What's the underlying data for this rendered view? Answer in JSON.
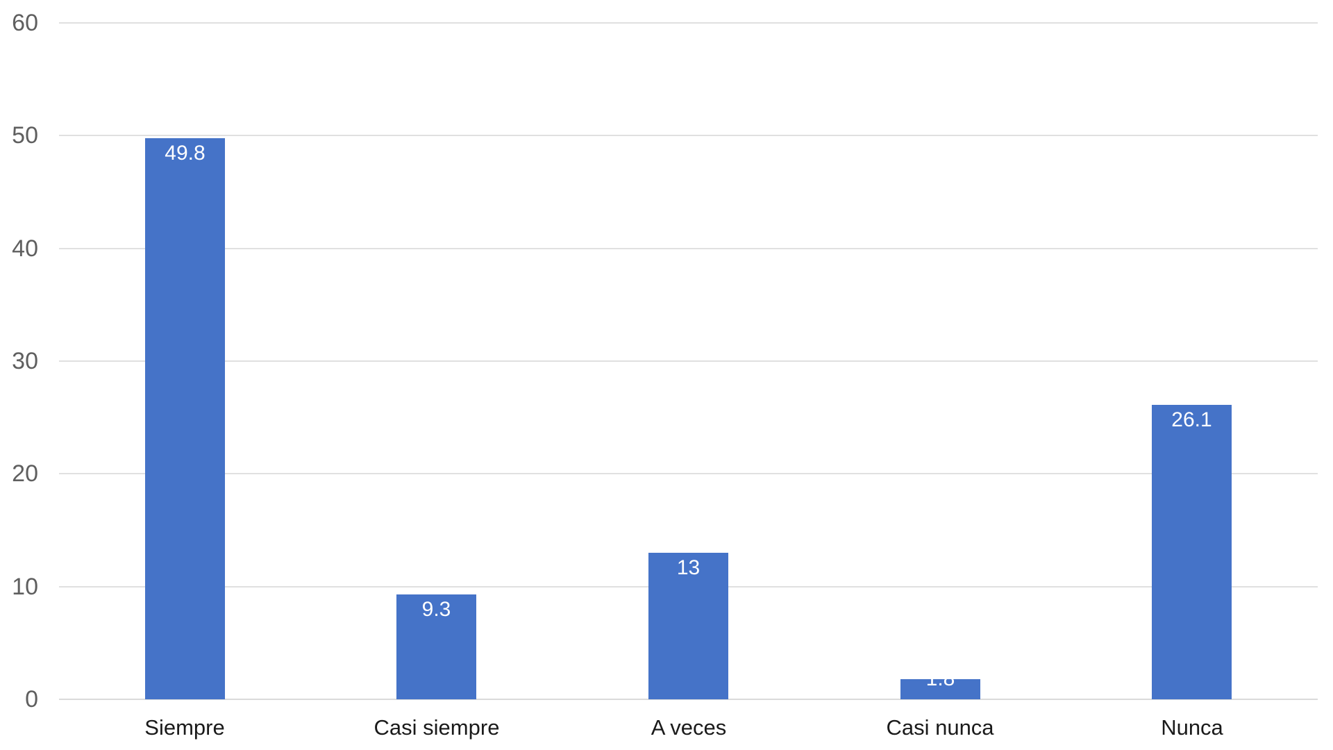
{
  "chart_data": {
    "type": "bar",
    "title": "",
    "xlabel": "",
    "ylabel": "",
    "categories": [
      "Siempre",
      "Casi siempre",
      "A veces",
      "Casi nunca",
      "Nunca"
    ],
    "values": [
      49.8,
      9.3,
      13,
      1.8,
      26.1
    ],
    "data_labels": [
      "49.8",
      "9.3",
      "13",
      "1.8",
      "26.1"
    ],
    "ylim": [
      0,
      60
    ],
    "yticks": [
      0,
      10,
      20,
      30,
      40,
      50,
      60
    ],
    "ytick_labels": [
      "0",
      "10",
      "20",
      "30",
      "40",
      "50",
      "60"
    ],
    "grid": true,
    "legend": false,
    "colors": {
      "bar_fill": "#4573C8",
      "data_label_text": "#ffffff",
      "gridline": "#e0e0e0",
      "baseline": "#dadada",
      "y_axis_text": "#5f5f5f",
      "x_axis_text": "#1a1a1a",
      "background": "#ffffff"
    }
  }
}
